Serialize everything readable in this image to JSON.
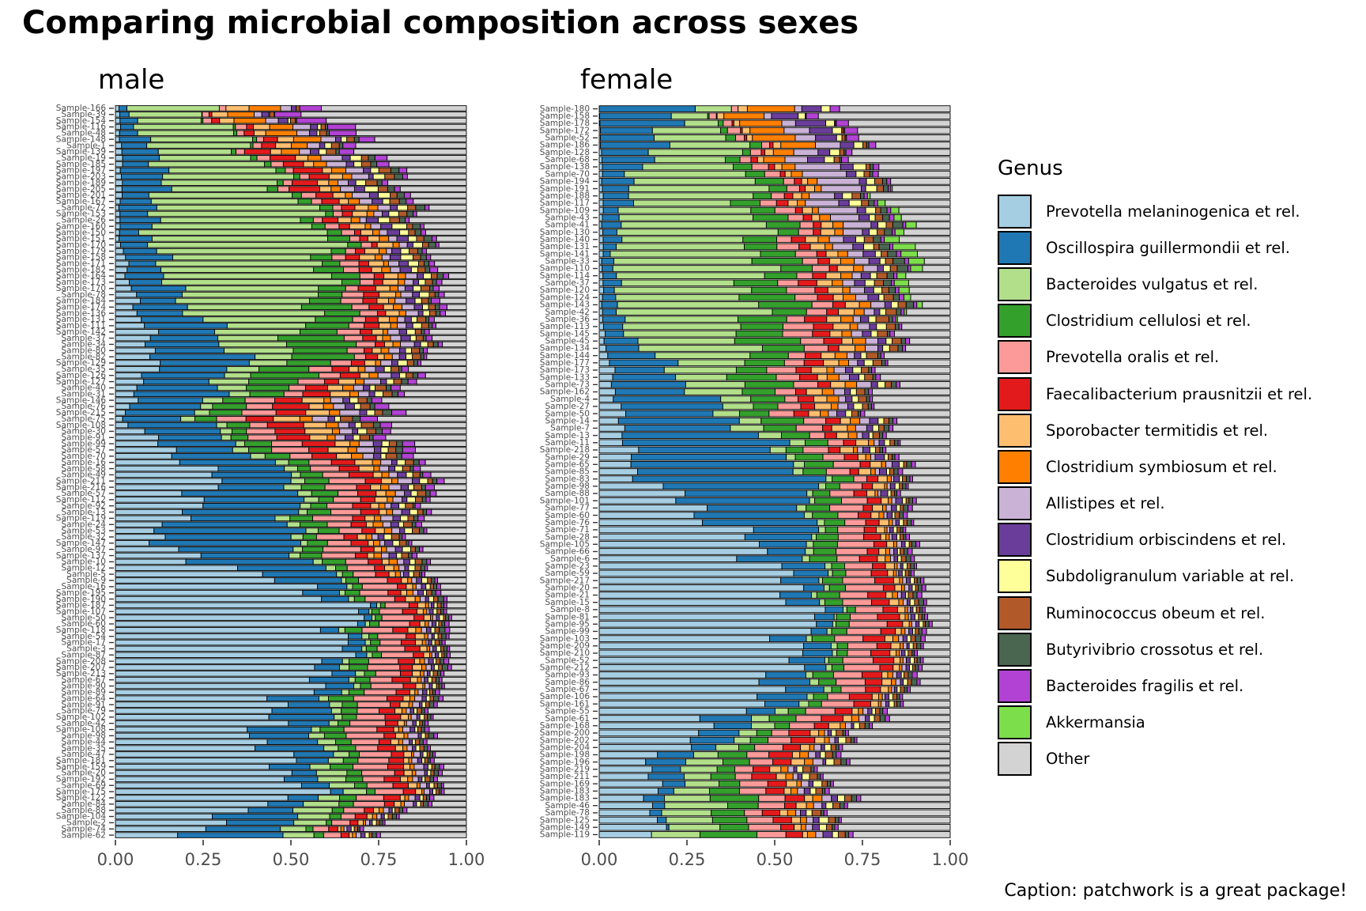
{
  "title": "Comparing microbial composition across sexes",
  "caption": "Caption: patchwork is a great package!",
  "legend": {
    "title": "Genus",
    "items": [
      {
        "label": "Prevotella melaninogenica et rel.",
        "color": "#A6CEE3"
      },
      {
        "label": "Oscillospira guillermondii et rel.",
        "color": "#1F78B4"
      },
      {
        "label": "Bacteroides vulgatus et rel.",
        "color": "#B2DF8A"
      },
      {
        "label": "Clostridium cellulosi et rel.",
        "color": "#33A02C"
      },
      {
        "label": "Prevotella oralis et rel.",
        "color": "#FB9A99"
      },
      {
        "label": "Faecalibacterium prausnitzii et rel.",
        "color": "#E31A1C"
      },
      {
        "label": "Sporobacter termitidis et rel.",
        "color": "#FDBF6F"
      },
      {
        "label": "Clostridium symbiosum et rel.",
        "color": "#FF7F00"
      },
      {
        "label": "Allistipes et rel.",
        "color": "#CAB2D6"
      },
      {
        "label": "Clostridium orbiscindens et rel.",
        "color": "#6A3D9A"
      },
      {
        "label": "Subdoligranulum variable at rel.",
        "color": "#FFFF99"
      },
      {
        "label": "Ruminococcus obeum et rel.",
        "color": "#B15928"
      },
      {
        "label": "Butyrivibrio crossotus et rel.",
        "color": "#4A6651"
      },
      {
        "label": "Bacteroides fragilis et rel.",
        "color": "#B242D4"
      },
      {
        "label": "Akkermansia",
        "color": "#7CDE4B"
      },
      {
        "label": "Other",
        "color": "#D3D3D3"
      }
    ]
  },
  "chart_data": [
    {
      "type": "bar",
      "orientation": "horizontal",
      "stacked": true,
      "title": "male",
      "xlim": [
        0,
        1
      ],
      "x_ticks": [
        "0.00",
        "0.25",
        "0.50",
        "0.75",
        "1.00"
      ],
      "categories": [
        "Sample-166",
        "Sample-39",
        "Sample-154",
        "Sample-116",
        "Sample-48",
        "Sample-148",
        "Sample-1",
        "Sample-139",
        "Sample-19",
        "Sample-185",
        "Sample-197",
        "Sample-203",
        "Sample-189",
        "Sample-205",
        "Sample-201",
        "Sample-167",
        "Sample-72",
        "Sample-153",
        "Sample-26",
        "Sample-160",
        "Sample-150",
        "Sample-151",
        "Sample-170",
        "Sample-179",
        "Sample-158",
        "Sample-171",
        "Sample-182",
        "Sample-164",
        "Sample-173",
        "Sample-170",
        "Sample-78",
        "Sample-184",
        "Sample-174",
        "Sample-136",
        "Sample-131",
        "Sample-111",
        "Sample-142",
        "Sample-37",
        "Sample-34",
        "Sample-80",
        "Sample-82",
        "Sample-129",
        "Sample-35",
        "Sample-126",
        "Sample-127",
        "Sample-40",
        "Sample-31",
        "Sample-146",
        "Sample-76",
        "Sample-215",
        "Sample-75",
        "Sample-108",
        "Sample-30",
        "Sample-91",
        "Sample-99",
        "Sample-57",
        "Sample-70",
        "Sample-16",
        "Sample-58",
        "Sample-49",
        "Sample-211",
        "Sample-216",
        "Sample-57",
        "Sample-112",
        "Sample-92",
        "Sample-13",
        "Sample-119",
        "Sample-24",
        "Sample-53",
        "Sample-32",
        "Sample-147",
        "Sample-97",
        "Sample-137",
        "Sample-10",
        "Sample-12",
        "Sample-5",
        "Sample-9",
        "Sample-16",
        "Sample-195",
        "Sample-190",
        "Sample-187",
        "Sample-107",
        "Sample-50",
        "Sample-60",
        "Sample-118",
        "Sample-54",
        "Sample-17",
        "Sample-3",
        "Sample-87",
        "Sample-208",
        "Sample-207",
        "Sample-213",
        "Sample-67",
        "Sample-90",
        "Sample-89",
        "Sample-64",
        "Sample-91",
        "Sample-79",
        "Sample-102",
        "Sample-42",
        "Sample-108",
        "Sample-98",
        "Sample-44",
        "Sample-35",
        "Sample-47",
        "Sample-181",
        "Sample-159",
        "Sample-20",
        "Sample-192",
        "Sample-69",
        "Sample-175",
        "Sample-122",
        "Sample-84",
        "Sample-88",
        "Sample-104",
        "Sample-2",
        "Sample-74",
        "Sample-62"
      ],
      "series_order": [
        "Prevotella melaninogenica et rel.",
        "Oscillospira guillermondii et rel.",
        "Bacteroides vulgatus et rel.",
        "Clostridium cellulosi et rel.",
        "Prevotella oralis et rel.",
        "Faecalibacterium prausnitzii et rel.",
        "Sporobacter termitidis et rel.",
        "Clostridium symbiosum et rel.",
        "Allistipes et rel.",
        "Clostridium orbiscindens et rel.",
        "Subdoligranulum variable at rel.",
        "Ruminococcus obeum et rel.",
        "Butyrivibrio crossotus et rel.",
        "Bacteroides fragilis et rel.",
        "Akkermansia",
        "Other"
      ],
      "anchors": [
        {
          "row": 0,
          "values": [
            0.01,
            0.02,
            0.23,
            0.0,
            0.02,
            0.0,
            0.05,
            0.1,
            0.03,
            0.02,
            0.0,
            0.01,
            0.0,
            0.09,
            0.0,
            0.42
          ]
        },
        {
          "row": 10,
          "values": [
            0.02,
            0.12,
            0.3,
            0.02,
            0.03,
            0.08,
            0.03,
            0.03,
            0.05,
            0.02,
            0.03,
            0.03,
            0.02,
            0.02,
            0.0,
            0.2
          ]
        },
        {
          "row": 20,
          "values": [
            0.01,
            0.08,
            0.52,
            0.04,
            0.03,
            0.02,
            0.04,
            0.02,
            0.02,
            0.03,
            0.03,
            0.02,
            0.02,
            0.01,
            0.0,
            0.11
          ]
        },
        {
          "row": 30,
          "values": [
            0.05,
            0.12,
            0.42,
            0.08,
            0.05,
            0.04,
            0.04,
            0.02,
            0.03,
            0.02,
            0.02,
            0.02,
            0.01,
            0.02,
            0.0,
            0.06
          ]
        },
        {
          "row": 40,
          "values": [
            0.12,
            0.24,
            0.12,
            0.18,
            0.05,
            0.03,
            0.02,
            0.02,
            0.03,
            0.02,
            0.02,
            0.02,
            0.01,
            0.01,
            0.0,
            0.11
          ]
        },
        {
          "row": 50,
          "values": [
            0.02,
            0.2,
            0.03,
            0.06,
            0.08,
            0.1,
            0.07,
            0.03,
            0.04,
            0.02,
            0.02,
            0.03,
            0.02,
            0.04,
            0.0,
            0.24
          ]
        },
        {
          "row": 60,
          "values": [
            0.3,
            0.22,
            0.04,
            0.06,
            0.08,
            0.05,
            0.03,
            0.02,
            0.03,
            0.02,
            0.02,
            0.02,
            0.01,
            0.02,
            0.0,
            0.08
          ]
        },
        {
          "row": 70,
          "values": [
            0.1,
            0.4,
            0.03,
            0.06,
            0.08,
            0.04,
            0.02,
            0.02,
            0.02,
            0.02,
            0.02,
            0.02,
            0.01,
            0.01,
            0.0,
            0.15
          ]
        },
        {
          "row": 80,
          "values": [
            0.7,
            0.02,
            0.01,
            0.02,
            0.08,
            0.03,
            0.02,
            0.01,
            0.01,
            0.01,
            0.01,
            0.01,
            0.01,
            0.01,
            0.0,
            0.05
          ]
        },
        {
          "row": 90,
          "values": [
            0.62,
            0.06,
            0.02,
            0.04,
            0.08,
            0.04,
            0.02,
            0.01,
            0.01,
            0.01,
            0.01,
            0.01,
            0.01,
            0.01,
            0.0,
            0.05
          ]
        },
        {
          "row": 100,
          "values": [
            0.4,
            0.18,
            0.03,
            0.05,
            0.09,
            0.04,
            0.02,
            0.01,
            0.02,
            0.01,
            0.01,
            0.01,
            0.01,
            0.01,
            0.0,
            0.11
          ]
        },
        {
          "row": 110,
          "values": [
            0.55,
            0.05,
            0.08,
            0.04,
            0.08,
            0.04,
            0.02,
            0.01,
            0.02,
            0.01,
            0.01,
            0.01,
            0.01,
            0.01,
            0.0,
            0.06
          ]
        },
        {
          "row": 117,
          "values": [
            0.18,
            0.27,
            0.1,
            0.02,
            0.04,
            0.02,
            0.01,
            0.01,
            0.01,
            0.01,
            0.01,
            0.01,
            0.01,
            0.01,
            0.0,
            0.29
          ]
        }
      ]
    },
    {
      "type": "bar",
      "orientation": "horizontal",
      "stacked": true,
      "title": "female",
      "xlim": [
        0,
        1
      ],
      "x_ticks": [
        "0.00",
        "0.25",
        "0.50",
        "0.75",
        "1.00"
      ],
      "categories": [
        "Sample-180",
        "Sample-158",
        "Sample-178",
        "Sample-172",
        "Sample-52",
        "Sample-186",
        "Sample-128",
        "Sample-68",
        "Sample-138",
        "Sample-70",
        "Sample-194",
        "Sample-191",
        "Sample-188",
        "Sample-117",
        "Sample-109",
        "Sample-43",
        "Sample-41",
        "Sample-130",
        "Sample-140",
        "Sample-131",
        "Sample-141",
        "Sample-33",
        "Sample-110",
        "Sample-114",
        "Sample-37",
        "Sample-120",
        "Sample-124",
        "Sample-143",
        "Sample-42",
        "Sample-36",
        "Sample-113",
        "Sample-145",
        "Sample-45",
        "Sample-134",
        "Sample-144",
        "Sample-177",
        "Sample-173",
        "Sample-133",
        "Sample-73",
        "Sample-162",
        "Sample-4",
        "Sample-27",
        "Sample-50",
        "Sample-14",
        "Sample-7",
        "Sample-13",
        "Sample-11",
        "Sample-218",
        "Sample-29",
        "Sample-65",
        "Sample-85",
        "Sample-83",
        "Sample-98",
        "Sample-88",
        "Sample-101",
        "Sample-77",
        "Sample-60",
        "Sample-76",
        "Sample-71",
        "Sample-28",
        "Sample-105",
        "Sample-66",
        "Sample-6",
        "Sample-23",
        "Sample-59",
        "Sample-217",
        "Sample-20",
        "Sample-21",
        "Sample-15",
        "Sample-8",
        "Sample-81",
        "Sample-95",
        "Sample-99",
        "Sample-103",
        "Sample-209",
        "Sample-210",
        "Sample-52",
        "Sample-212",
        "Sample-93",
        "Sample-86",
        "Sample-67",
        "Sample-106",
        "Sample-161",
        "Sample-55",
        "Sample-61",
        "Sample-168",
        "Sample-200",
        "Sample-202",
        "Sample-204",
        "Sample-198",
        "Sample-196",
        "Sample-219",
        "Sample-211",
        "Sample-169",
        "Sample-183",
        "Sample-183",
        "Sample-46",
        "Sample-78",
        "Sample-125",
        "Sample-149",
        "Sample-119"
      ],
      "series_order": [
        "Prevotella melaninogenica et rel.",
        "Oscillospira guillermondii et rel.",
        "Bacteroides vulgatus et rel.",
        "Clostridium cellulosi et rel.",
        "Prevotella oralis et rel.",
        "Faecalibacterium prausnitzii et rel.",
        "Sporobacter termitidis et rel.",
        "Clostridium symbiosum et rel.",
        "Allistipes et rel.",
        "Clostridium orbiscindens et rel.",
        "Subdoligranulum variable at rel.",
        "Ruminococcus obeum et rel.",
        "Butyrivibrio crossotus et rel.",
        "Bacteroides fragilis et rel.",
        "Akkermansia",
        "Other"
      ],
      "anchors": [
        {
          "row": 0,
          "values": [
            0.0,
            0.24,
            0.09,
            0.0,
            0.02,
            0.0,
            0.02,
            0.15,
            0.02,
            0.08,
            0.02,
            0.0,
            0.0,
            0.04,
            0.0,
            0.32
          ]
        },
        {
          "row": 10,
          "values": [
            0.01,
            0.08,
            0.34,
            0.06,
            0.04,
            0.02,
            0.02,
            0.02,
            0.12,
            0.02,
            0.03,
            0.02,
            0.01,
            0.01,
            0.0,
            0.2
          ]
        },
        {
          "row": 20,
          "values": [
            0.01,
            0.03,
            0.42,
            0.1,
            0.05,
            0.03,
            0.04,
            0.03,
            0.04,
            0.03,
            0.02,
            0.02,
            0.03,
            0.01,
            0.05,
            0.09
          ]
        },
        {
          "row": 30,
          "values": [
            0.01,
            0.05,
            0.36,
            0.14,
            0.07,
            0.05,
            0.04,
            0.03,
            0.03,
            0.02,
            0.02,
            0.03,
            0.01,
            0.01,
            0.0,
            0.13
          ]
        },
        {
          "row": 40,
          "values": [
            0.05,
            0.25,
            0.1,
            0.1,
            0.06,
            0.04,
            0.04,
            0.03,
            0.03,
            0.02,
            0.02,
            0.02,
            0.01,
            0.01,
            0.0,
            0.22
          ]
        },
        {
          "row": 50,
          "values": [
            0.1,
            0.5,
            0.02,
            0.06,
            0.06,
            0.03,
            0.03,
            0.01,
            0.01,
            0.02,
            0.01,
            0.01,
            0.01,
            0.01,
            0.0,
            0.12
          ]
        },
        {
          "row": 60,
          "values": [
            0.45,
            0.15,
            0.02,
            0.06,
            0.08,
            0.04,
            0.02,
            0.01,
            0.01,
            0.01,
            0.01,
            0.01,
            0.01,
            0.01,
            0.0,
            0.11
          ]
        },
        {
          "row": 70,
          "values": [
            0.62,
            0.05,
            0.01,
            0.04,
            0.09,
            0.05,
            0.02,
            0.01,
            0.01,
            0.01,
            0.01,
            0.01,
            0.01,
            0.01,
            0.0,
            0.06
          ]
        },
        {
          "row": 80,
          "values": [
            0.5,
            0.12,
            0.02,
            0.04,
            0.08,
            0.05,
            0.02,
            0.01,
            0.01,
            0.01,
            0.01,
            0.01,
            0.01,
            0.01,
            0.0,
            0.1
          ]
        },
        {
          "row": 90,
          "values": [
            0.15,
            0.1,
            0.08,
            0.06,
            0.06,
            0.06,
            0.03,
            0.02,
            0.02,
            0.01,
            0.02,
            0.02,
            0.01,
            0.01,
            0.0,
            0.35
          ]
        },
        {
          "row": 100,
          "values": [
            0.16,
            0.0,
            0.17,
            0.12,
            0.08,
            0.04,
            0.02,
            0.02,
            0.02,
            0.02,
            0.02,
            0.02,
            0.01,
            0.01,
            0.0,
            0.29
          ]
        }
      ]
    }
  ]
}
